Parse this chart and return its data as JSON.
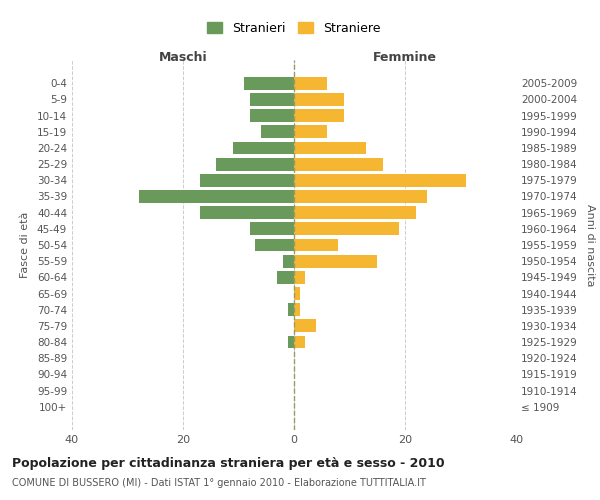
{
  "age_groups": [
    "100+",
    "95-99",
    "90-94",
    "85-89",
    "80-84",
    "75-79",
    "70-74",
    "65-69",
    "60-64",
    "55-59",
    "50-54",
    "45-49",
    "40-44",
    "35-39",
    "30-34",
    "25-29",
    "20-24",
    "15-19",
    "10-14",
    "5-9",
    "0-4"
  ],
  "birth_years": [
    "≤ 1909",
    "1910-1914",
    "1915-1919",
    "1920-1924",
    "1925-1929",
    "1930-1934",
    "1935-1939",
    "1940-1944",
    "1945-1949",
    "1950-1954",
    "1955-1959",
    "1960-1964",
    "1965-1969",
    "1970-1974",
    "1975-1979",
    "1980-1984",
    "1985-1989",
    "1990-1994",
    "1995-1999",
    "2000-2004",
    "2005-2009"
  ],
  "maschi": [
    0,
    0,
    0,
    0,
    1,
    0,
    1,
    0,
    3,
    2,
    7,
    8,
    17,
    28,
    17,
    14,
    11,
    6,
    8,
    8,
    9
  ],
  "femmine": [
    0,
    0,
    0,
    0,
    2,
    4,
    1,
    1,
    2,
    15,
    8,
    19,
    22,
    24,
    31,
    16,
    13,
    6,
    9,
    9,
    6
  ],
  "color_maschi": "#6a9a5b",
  "color_femmine": "#f5b731",
  "background_color": "#ffffff",
  "grid_color": "#cccccc",
  "title": "Popolazione per cittadinanza straniera per età e sesso - 2010",
  "subtitle": "COMUNE DI BUSSERO (MI) - Dati ISTAT 1° gennaio 2010 - Elaborazione TUTTITALIA.IT",
  "xlabel_left": "Maschi",
  "xlabel_right": "Femmine",
  "ylabel_left": "Fasce di età",
  "ylabel_right": "Anni di nascita",
  "legend_maschi": "Stranieri",
  "legend_femmine": "Straniere",
  "xlim": 40,
  "bar_height": 0.8
}
